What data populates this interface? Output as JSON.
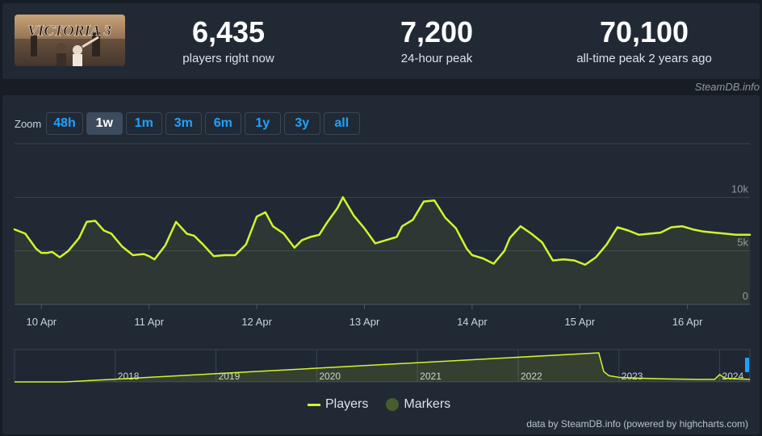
{
  "header": {
    "game_title": "VICTORIA 3",
    "stats": [
      {
        "value": "6,435",
        "label": "players right now"
      },
      {
        "value": "7,200",
        "label": "24-hour peak"
      },
      {
        "value": "70,100",
        "label": "all-time peak 2 years ago"
      }
    ]
  },
  "brand": "SteamDB.info",
  "zoom": {
    "label": "Zoom",
    "buttons": [
      "48h",
      "1w",
      "1m",
      "3m",
      "6m",
      "1y",
      "3y",
      "all"
    ],
    "active": "1w"
  },
  "colors": {
    "players_line": "#d3f42c",
    "markers": "#475d2b",
    "panel": "#212935",
    "zoom_text": "#1fa2ff"
  },
  "legend": {
    "players": "Players",
    "markers": "Markers"
  },
  "credits": "data by SteamDB.info (powered by highcharts.com)",
  "chart_data": [
    {
      "type": "line",
      "title": "",
      "xlabel": "",
      "ylabel": "",
      "series": [
        {
          "name": "Players",
          "x": [
            0,
            0.1,
            0.2,
            0.25,
            0.3,
            0.35,
            0.42,
            0.5,
            0.6,
            0.67,
            0.75,
            0.83,
            0.9,
            1,
            1.1,
            1.2,
            1.25,
            1.3,
            1.4,
            1.5,
            1.6,
            1.67,
            1.75,
            1.85,
            1.95,
            2.05,
            2.15,
            2.25,
            2.33,
            2.4,
            2.5,
            2.6,
            2.67,
            2.75,
            2.83,
            2.9,
            3,
            3.05,
            3.15,
            3.25,
            3.35,
            3.45,
            3.55,
            3.6,
            3.7,
            3.8,
            3.9,
            4,
            4.1,
            4.2,
            4.25,
            4.35,
            4.45,
            4.55,
            4.6,
            4.7,
            4.8,
            4.9,
            5,
            5.1,
            5.2,
            5.3,
            5.4,
            5.5,
            5.6,
            5.7,
            5.8,
            5.9,
            6,
            6.1,
            6.2,
            6.3,
            6.4,
            6.5,
            6.6,
            6.7,
            6.8,
            6.83
          ],
          "values": [
            7000,
            6600,
            5200,
            4800,
            4800,
            4900,
            4400,
            5000,
            6200,
            7700,
            7800,
            6900,
            6600,
            5400,
            4600,
            4700,
            4500,
            4200,
            5500,
            7700,
            6600,
            6400,
            5600,
            4500,
            4600,
            4600,
            5600,
            8200,
            8600,
            7300,
            6600,
            5300,
            6000,
            6300,
            6500,
            7600,
            9000,
            10000,
            8300,
            7100,
            5700,
            6000,
            6300,
            7300,
            7900,
            9600,
            9700,
            8100,
            7100,
            5200,
            4600,
            4300,
            3800,
            5000,
            6200,
            7300,
            6600,
            5800,
            4100,
            4200,
            4100,
            3700,
            4400,
            5600,
            7200,
            6900,
            6500,
            6600,
            6700,
            7200,
            7300,
            7000,
            6800,
            6700,
            6600,
            6500,
            6500,
            6500
          ],
          "x_tick_labels": [
            "10 Apr",
            "11 Apr",
            "12 Apr",
            "13 Apr",
            "14 Apr",
            "15 Apr",
            "16 Apr"
          ],
          "x_tick_positions": [
            0.25,
            1.25,
            2.25,
            3.25,
            4.25,
            5.25,
            6.25
          ]
        }
      ],
      "y_ticks": [
        0,
        5000,
        10000
      ],
      "y_tick_labels": [
        "0",
        "5k",
        "10k"
      ],
      "ylim": [
        0,
        15000
      ],
      "grid": true
    },
    {
      "type": "area",
      "title": "",
      "x_tick_labels": [
        "2018",
        "2019",
        "2020",
        "2021",
        "2022",
        "2023",
        "2024"
      ],
      "x_tick_positions": [
        2018,
        2019,
        2020,
        2021,
        2022,
        2023,
        2024
      ],
      "series": [
        {
          "name": "Players",
          "x": [
            2017.0,
            2017.5,
            2022.8,
            2022.85,
            2022.9,
            2023.0,
            2023.2,
            2023.5,
            2023.8,
            2023.95,
            2024.0,
            2024.05,
            2024.2,
            2024.3
          ],
          "values": [
            0,
            0,
            70100,
            25000,
            15000,
            11000,
            9000,
            7000,
            6000,
            6000,
            18000,
            9000,
            7000,
            6435
          ]
        }
      ],
      "xlim": [
        2017.0,
        2024.3
      ]
    }
  ]
}
